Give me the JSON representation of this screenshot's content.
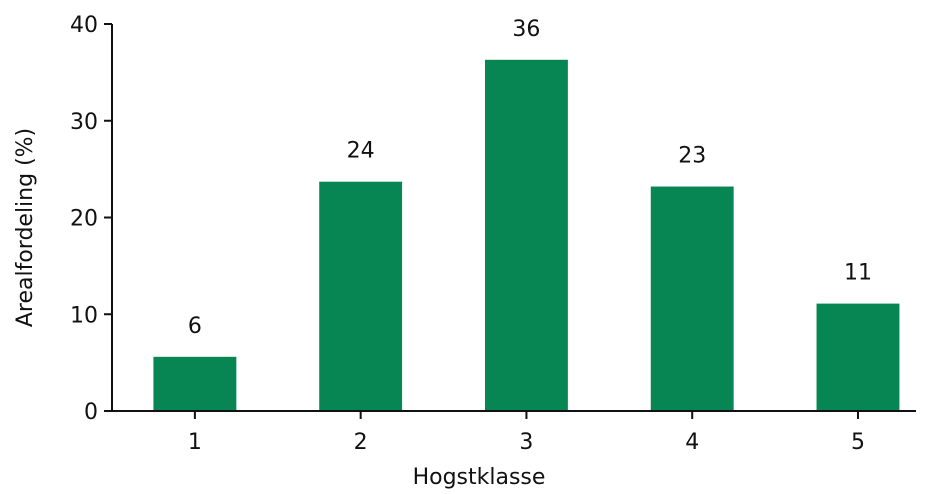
{
  "chart_data": {
    "type": "bar",
    "categories": [
      "1",
      "2",
      "3",
      "4",
      "5"
    ],
    "values": [
      5.6,
      23.7,
      36.3,
      23.2,
      11.1
    ],
    "data_labels": [
      "6",
      "24",
      "36",
      "23",
      "11"
    ],
    "xlabel": "Hogstklasse",
    "ylabel": "Arealfordeling (%)",
    "ylim": [
      0,
      40
    ],
    "yticks": [
      0,
      10,
      20,
      30,
      40
    ],
    "xlim": [
      0.5,
      5.35
    ],
    "grid": false,
    "legend": "none",
    "bar_color": "#078552"
  }
}
